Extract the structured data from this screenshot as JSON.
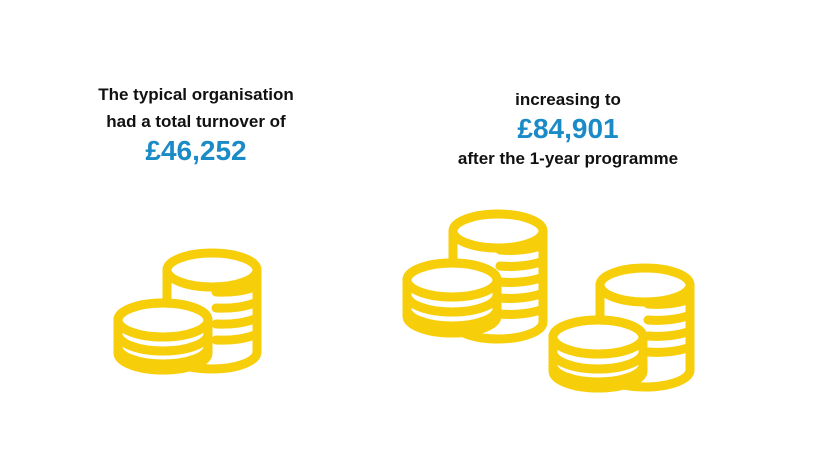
{
  "colors": {
    "accent": "#1a8bc6",
    "coin": "#f7ce0a",
    "text": "#111111"
  },
  "before": {
    "line1": "The typical organisation",
    "line2": "had a total turnover of",
    "amount": "£46,252",
    "icon": "two-coin-stacks-icon"
  },
  "after": {
    "line1": "increasing to",
    "amount": "£84,901",
    "line2": "after the 1-year programme",
    "icon": "three-coin-stacks-icon"
  }
}
